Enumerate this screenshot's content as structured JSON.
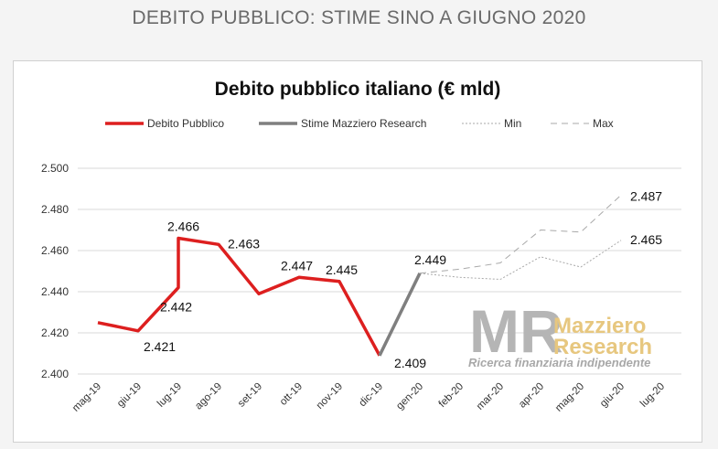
{
  "header": {
    "title": "DEBITO PUBBLICO: STIME SINO A GIUGNO 2020"
  },
  "watermark": {
    "logo_text": "MR",
    "name_line1": "Mazziero",
    "name_line2": "Research",
    "tagline": "Ricerca finanziaria indipendente"
  },
  "colors": {
    "debito": "#dd1f1f",
    "stime": "#7f7f7f",
    "minmax": "#a9a9a9",
    "grid": "#d9d9d9",
    "logo_accent": "#e7c77f"
  },
  "chart_data": {
    "type": "line",
    "title": "Debito pubblico italiano (€ mld)",
    "xlabel": "",
    "ylabel": "",
    "categories": [
      "mag-19",
      "giu-19",
      "lug-19",
      "ago-19",
      "set-19",
      "ott-19",
      "nov-19",
      "dic-19",
      "gen-20",
      "feb-20",
      "mar-20",
      "apr-20",
      "mag-20",
      "giu-20",
      "lug-20"
    ],
    "ylim": [
      2400,
      2500
    ],
    "yticks": [
      2400,
      2420,
      2440,
      2460,
      2480,
      2500
    ],
    "ytick_labels": [
      "2.400",
      "2.420",
      "2.440",
      "2.460",
      "2.480",
      "2.500"
    ],
    "grid": "horizontal",
    "legend_position": "top",
    "series": [
      {
        "name": "Debito Pubblico",
        "style": "solid-thick",
        "color": "#dd1f1f",
        "points": [
          [
            "mag-19",
            2425
          ],
          [
            "giu-19",
            2421
          ],
          [
            "lug-19",
            2442
          ],
          [
            "lug-19",
            2466
          ],
          [
            "ago-19",
            2463
          ],
          [
            "set-19",
            2439
          ],
          [
            "ott-19",
            2447
          ],
          [
            "nov-19",
            2445
          ],
          [
            "dic-19",
            2409
          ]
        ]
      },
      {
        "name": "Stime Mazziero Research",
        "style": "solid-thick",
        "color": "#7f7f7f",
        "points": [
          [
            "dic-19",
            2409
          ],
          [
            "gen-20",
            2449
          ]
        ]
      },
      {
        "name": "Min",
        "style": "dotted",
        "color": "#a9a9a9",
        "points": [
          [
            "gen-20",
            2449
          ],
          [
            "feb-20",
            2447
          ],
          [
            "mar-20",
            2446
          ],
          [
            "apr-20",
            2457
          ],
          [
            "mag-20",
            2452
          ],
          [
            "giu-20",
            2465
          ]
        ]
      },
      {
        "name": "Max",
        "style": "dashed",
        "color": "#a9a9a9",
        "points": [
          [
            "gen-20",
            2449
          ],
          [
            "feb-20",
            2451
          ],
          [
            "mar-20",
            2454
          ],
          [
            "apr-20",
            2470
          ],
          [
            "mag-20",
            2469
          ],
          [
            "giu-20",
            2487
          ]
        ]
      }
    ],
    "data_labels": [
      {
        "x": "giu-19",
        "y": 2421,
        "text": "2.421"
      },
      {
        "x": "lug-19",
        "y": 2442,
        "text": "2.442"
      },
      {
        "x": "lug-19",
        "y": 2466,
        "text": "2.466"
      },
      {
        "x": "ago-19",
        "y": 2463,
        "text": "2.463"
      },
      {
        "x": "ott-19",
        "y": 2447,
        "text": "2.447"
      },
      {
        "x": "nov-19",
        "y": 2445,
        "text": "2.445"
      },
      {
        "x": "dic-19",
        "y": 2409,
        "text": "2.409"
      },
      {
        "x": "gen-20",
        "y": 2449,
        "text": "2.449"
      },
      {
        "x": "giu-20",
        "y": 2487,
        "text": "2.487"
      },
      {
        "x": "giu-20",
        "y": 2465,
        "text": "2.465"
      }
    ]
  }
}
